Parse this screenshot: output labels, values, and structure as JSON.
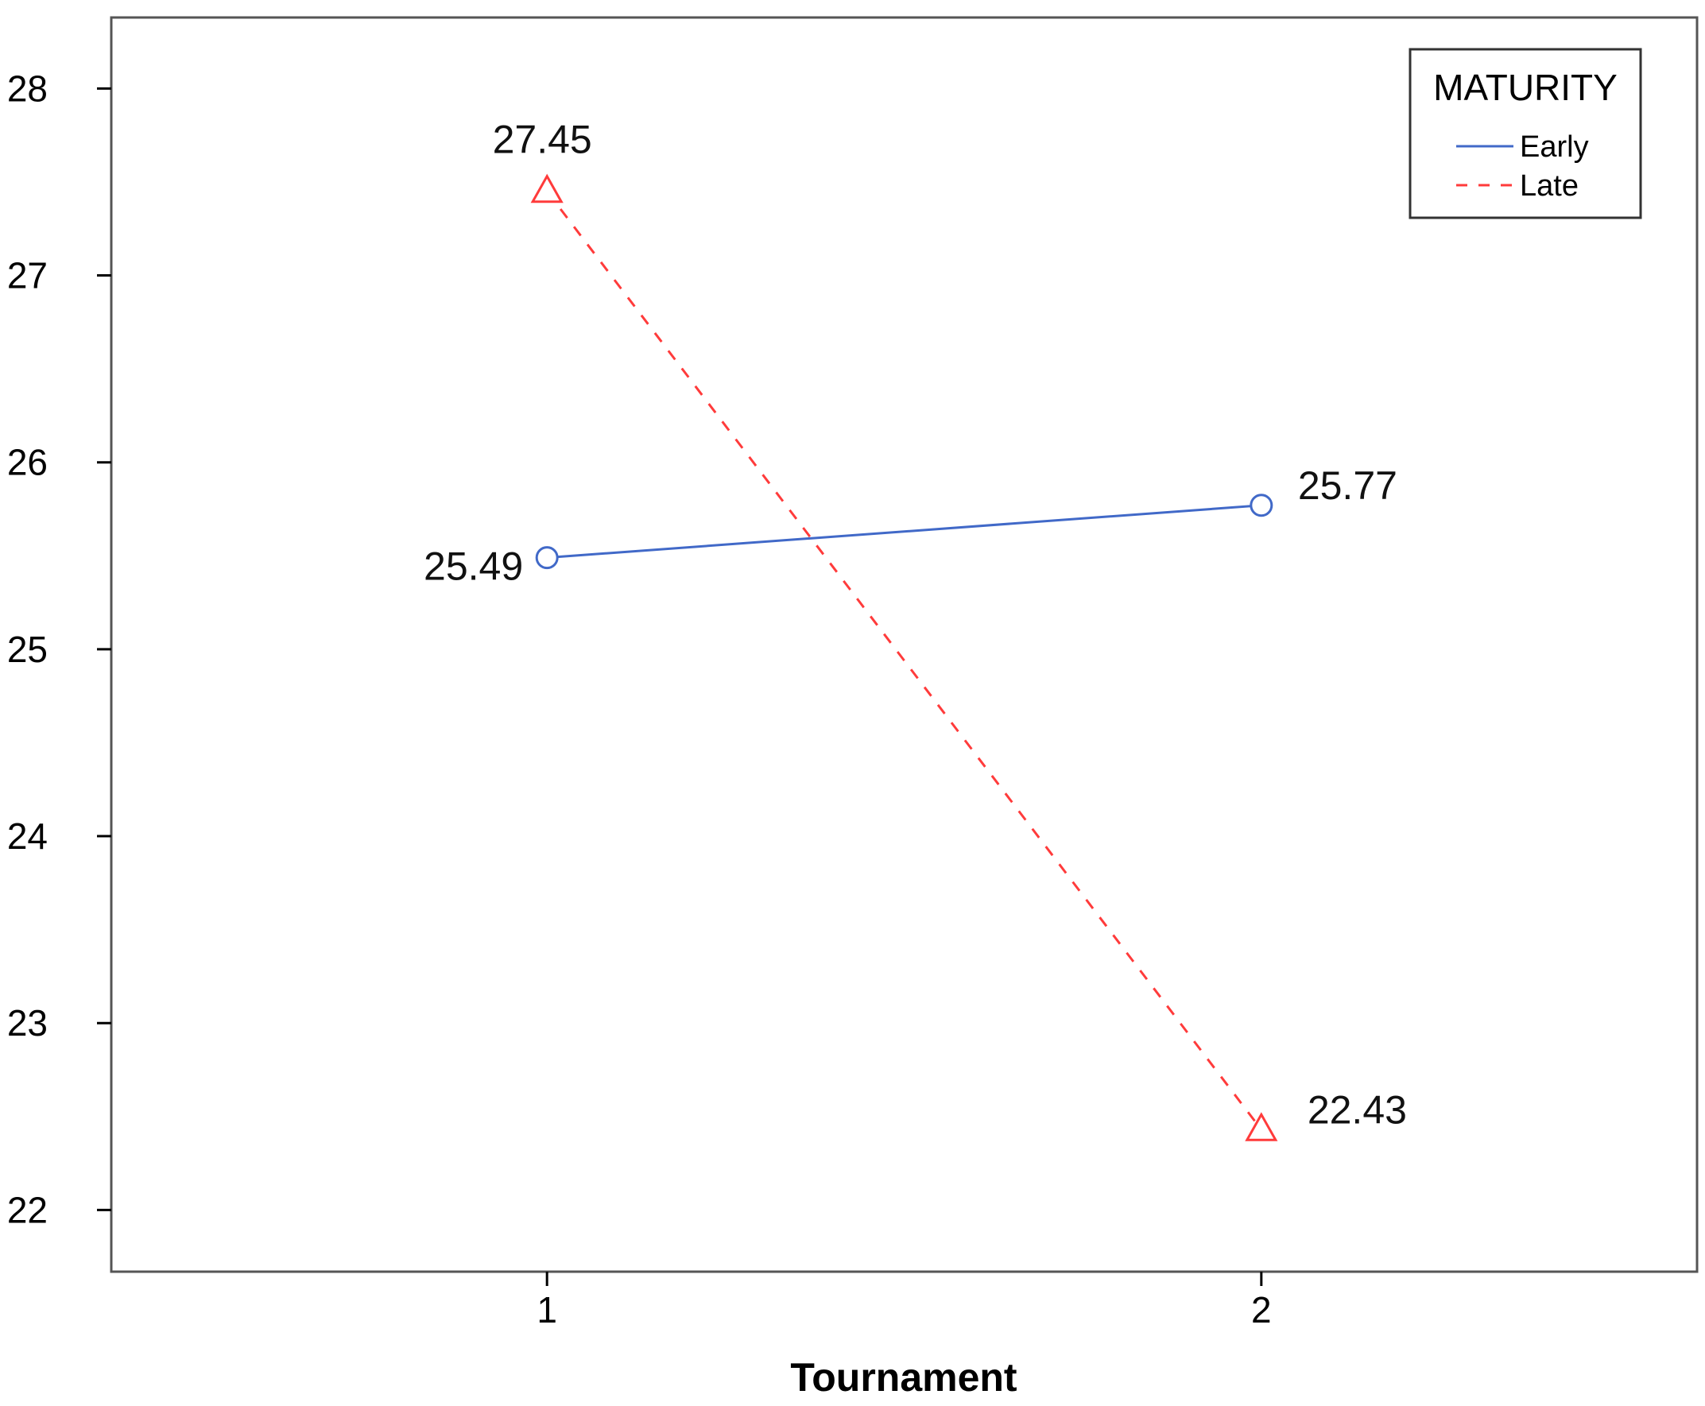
{
  "chart_data": {
    "type": "line",
    "title": "",
    "xlabel": "Tournament",
    "ylabel": "",
    "x": [
      1,
      2
    ],
    "xticks": [
      "1",
      "2"
    ],
    "xlim": [
      0.39,
      2.61
    ],
    "ylim": [
      21.67,
      28.38
    ],
    "yticks": [
      22,
      23,
      24,
      25,
      26,
      27,
      28
    ],
    "grid": false,
    "legend": {
      "title": "MATURITY",
      "placement": "top-right"
    },
    "series": [
      {
        "name": "Early",
        "values": [
          25.49,
          25.77
        ],
        "labels": [
          "25.49",
          "25.77"
        ],
        "color": "#4169c8",
        "line_style": "solid",
        "marker": "circle-icon"
      },
      {
        "name": "Late",
        "values": [
          27.45,
          22.43
        ],
        "labels": [
          "27.45",
          "22.43"
        ],
        "color": "#ff3b3b",
        "line_style": "dashed",
        "marker": "triangle-icon"
      }
    ]
  }
}
